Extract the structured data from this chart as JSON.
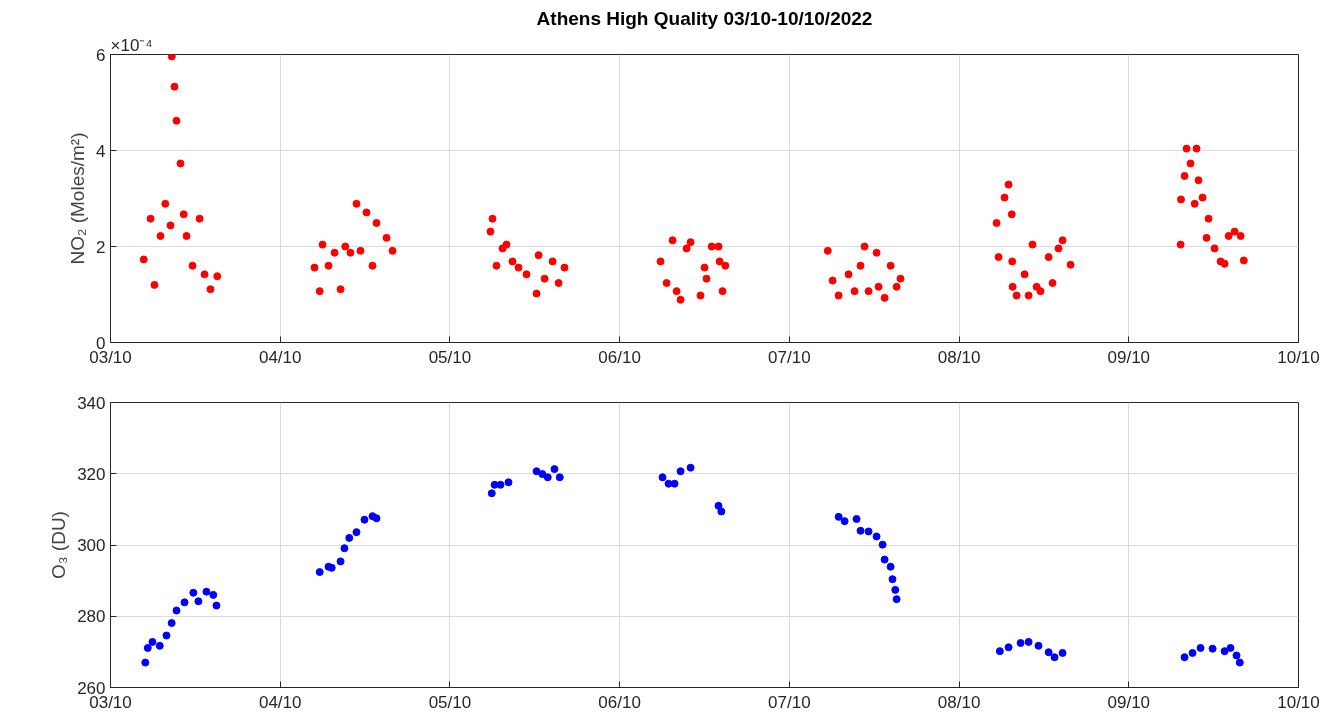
{
  "chart_data": [
    {
      "type": "scatter",
      "title": "Athens High Quality 03/10-10/10/2022",
      "ylabel": "NO₂ (Moles/m²)",
      "annotations": [
        "×10⁻⁴"
      ],
      "xlim": [
        "2022-10-03",
        "2022-10-10"
      ],
      "xticks": [
        {
          "value": "2022-10-03",
          "label": "03/10"
        },
        {
          "value": "2022-10-04",
          "label": "04/10"
        },
        {
          "value": "2022-10-05",
          "label": "05/10"
        },
        {
          "value": "2022-10-06",
          "label": "06/10"
        },
        {
          "value": "2022-10-07",
          "label": "07/10"
        },
        {
          "value": "2022-10-08",
          "label": "08/10"
        },
        {
          "value": "2022-10-09",
          "label": "09/10"
        },
        {
          "value": "2022-10-10",
          "label": "10/10"
        }
      ],
      "ylim": [
        0,
        6
      ],
      "yticks": [
        0,
        2,
        4,
        6
      ],
      "grid": true,
      "marker": "circle",
      "series": [
        {
          "color": "#ff0000",
          "x": [
            "2022-10-03T04:42",
            "2022-10-03T05:40",
            "2022-10-03T06:13",
            "2022-10-03T07:04",
            "2022-10-03T07:45",
            "2022-10-03T08:29",
            "2022-10-03T08:40",
            "2022-10-03T09:03",
            "2022-10-03T09:20",
            "2022-10-03T09:54",
            "2022-10-03T10:21",
            "2022-10-03T10:45",
            "2022-10-03T11:36",
            "2022-10-03T12:36",
            "2022-10-03T13:18",
            "2022-10-03T14:08",
            "2022-10-03T15:06",
            "2022-10-04T04:51",
            "2022-10-04T05:35",
            "2022-10-04T05:59",
            "2022-10-04T06:50",
            "2022-10-04T07:41",
            "2022-10-04T08:32",
            "2022-10-04T09:12",
            "2022-10-04T09:56",
            "2022-10-04T10:47",
            "2022-10-04T11:21",
            "2022-10-04T12:12",
            "2022-10-04T13:03",
            "2022-10-04T13:37",
            "2022-10-04T15:02",
            "2022-10-04T15:53",
            "2022-10-05T05:44",
            "2022-10-05T06:01",
            "2022-10-05T06:35",
            "2022-10-05T07:26",
            "2022-10-05T08:00",
            "2022-10-05T08:51",
            "2022-10-05T09:42",
            "2022-10-05T10:50",
            "2022-10-05T12:15",
            "2022-10-05T12:32",
            "2022-10-05T13:23",
            "2022-10-05T14:31",
            "2022-10-05T15:22",
            "2022-10-05T16:12",
            "2022-10-06T05:47",
            "2022-10-06T06:38",
            "2022-10-06T07:29",
            "2022-10-06T08:03",
            "2022-10-06T08:37",
            "2022-10-06T09:28",
            "2022-10-06T10:02",
            "2022-10-06T11:26",
            "2022-10-06T12:00",
            "2022-10-06T12:17",
            "2022-10-06T13:01",
            "2022-10-06T13:59",
            "2022-10-06T14:08",
            "2022-10-06T14:33",
            "2022-10-06T14:57",
            "2022-10-07T05:26",
            "2022-10-07T06:07",
            "2022-10-07T06:58",
            "2022-10-07T08:22",
            "2022-10-07T09:13",
            "2022-10-07T10:04",
            "2022-10-07T10:38",
            "2022-10-07T11:12",
            "2022-10-07T12:20",
            "2022-10-07T12:37",
            "2022-10-07T13:28",
            "2022-10-07T14:19",
            "2022-10-07T15:10",
            "2022-10-07T15:43",
            "2022-10-08T05:18",
            "2022-10-08T05:35",
            "2022-10-08T06:26",
            "2022-10-08T07:00",
            "2022-10-08T07:27",
            "2022-10-08T07:31",
            "2022-10-08T07:34",
            "2022-10-08T08:08",
            "2022-10-08T09:16",
            "2022-10-08T09:50",
            "2022-10-08T10:23",
            "2022-10-08T10:58",
            "2022-10-08T11:31",
            "2022-10-08T12:40",
            "2022-10-08T13:13",
            "2022-10-08T14:04",
            "2022-10-08T14:38",
            "2022-10-08T15:46",
            "2022-10-09T07:20",
            "2022-10-09T07:23",
            "2022-10-09T07:53",
            "2022-10-09T08:10",
            "2022-10-09T08:44",
            "2022-10-09T09:19",
            "2022-10-09T09:35",
            "2022-10-09T09:52",
            "2022-10-09T10:26",
            "2022-10-09T11:00",
            "2022-10-09T11:17",
            "2022-10-09T12:08",
            "2022-10-09T12:59",
            "2022-10-09T13:33",
            "2022-10-09T14:07",
            "2022-10-09T14:58",
            "2022-10-09T15:49",
            "2022-10-09T16:16"
          ],
          "values": [
            1.73,
            2.58,
            1.2,
            2.22,
            2.89,
            2.44,
            5.96,
            5.33,
            4.62,
            3.73,
            2.67,
            2.22,
            1.6,
            2.58,
            1.42,
            1.11,
            1.38,
            1.56,
            1.07,
            2.04,
            1.6,
            1.87,
            1.11,
            2.0,
            1.87,
            2.89,
            1.91,
            2.71,
            1.6,
            2.49,
            2.18,
            1.91,
            2.31,
            2.58,
            1.6,
            1.96,
            2.04,
            1.69,
            1.56,
            1.42,
            1.02,
            1.82,
            1.33,
            1.69,
            1.24,
            1.56,
            1.69,
            1.24,
            2.13,
            1.07,
            0.89,
            1.96,
            2.09,
            0.98,
            1.56,
            1.33,
            2.0,
            2.0,
            1.69,
            1.07,
            1.6,
            1.91,
            1.29,
            0.98,
            1.42,
            1.07,
            1.6,
            2.0,
            1.07,
            1.87,
            1.16,
            0.93,
            1.6,
            1.16,
            1.33,
            2.49,
            1.78,
            3.02,
            3.29,
            2.67,
            1.69,
            1.16,
            0.98,
            1.42,
            0.98,
            2.04,
            1.16,
            1.07,
            1.78,
            1.24,
            1.96,
            2.13,
            1.62,
            2.04,
            2.98,
            3.47,
            4.04,
            3.73,
            2.89,
            4.04,
            3.38,
            3.02,
            2.18,
            2.58,
            1.96,
            1.69,
            1.64,
            2.22,
            2.31,
            2.22,
            1.71
          ]
        }
      ]
    },
    {
      "type": "scatter",
      "ylabel": "O₃ (DU)",
      "xlim": [
        "2022-10-03",
        "2022-10-10"
      ],
      "xticks": [
        {
          "value": "2022-10-03",
          "label": "03/10"
        },
        {
          "value": "2022-10-04",
          "label": "04/10"
        },
        {
          "value": "2022-10-05",
          "label": "05/10"
        },
        {
          "value": "2022-10-06",
          "label": "06/10"
        },
        {
          "value": "2022-10-07",
          "label": "07/10"
        },
        {
          "value": "2022-10-08",
          "label": "08/10"
        },
        {
          "value": "2022-10-09",
          "label": "09/10"
        },
        {
          "value": "2022-10-10",
          "label": "10/10"
        }
      ],
      "ylim": [
        260,
        340
      ],
      "yticks": [
        260,
        280,
        300,
        320,
        340
      ],
      "grid": true,
      "marker": "circle",
      "series": [
        {
          "color": "#0000ff",
          "x": [
            "2022-10-03T04:55",
            "2022-10-03T05:16",
            "2022-10-03T05:56",
            "2022-10-03T06:58",
            "2022-10-03T07:55",
            "2022-10-03T08:39",
            "2022-10-03T09:20",
            "2022-10-03T10:28",
            "2022-10-03T11:43",
            "2022-10-03T12:26",
            "2022-10-03T13:34",
            "2022-10-03T14:32",
            "2022-10-03T14:59",
            "2022-10-04T05:35",
            "2022-10-04T06:50",
            "2022-10-04T07:17",
            "2022-10-04T08:32",
            "2022-10-04T09:05",
            "2022-10-04T09:46",
            "2022-10-04T10:47",
            "2022-10-04T11:55",
            "2022-10-04T13:03",
            "2022-10-04T13:37",
            "2022-10-05T05:55",
            "2022-10-05T06:19",
            "2022-10-05T07:09",
            "2022-10-05T08:17",
            "2022-10-05T12:15",
            "2022-10-05T13:05",
            "2022-10-05T13:50",
            "2022-10-05T14:47",
            "2022-10-05T15:32",
            "2022-10-06T06:04",
            "2022-10-06T06:55",
            "2022-10-06T07:46",
            "2022-10-06T08:37",
            "2022-10-06T10:02",
            "2022-10-06T13:59",
            "2022-10-06T14:23",
            "2022-10-07T06:58",
            "2022-10-07T07:49",
            "2022-10-07T09:30",
            "2022-10-07T10:04",
            "2022-10-07T11:12",
            "2022-10-07T12:20",
            "2022-10-07T13:11",
            "2022-10-07T13:28",
            "2022-10-07T14:19",
            "2022-10-07T14:35",
            "2022-10-07T14:59",
            "2022-10-07T15:10",
            "2022-10-08T05:46",
            "2022-10-08T07:00",
            "2022-10-08T08:42",
            "2022-10-08T09:50",
            "2022-10-08T11:14",
            "2022-10-08T12:40",
            "2022-10-08T13:30",
            "2022-10-08T14:38",
            "2022-10-09T07:53",
            "2022-10-09T09:01",
            "2022-10-09T10:09",
            "2022-10-09T11:51",
            "2022-10-09T13:33",
            "2022-10-09T14:23",
            "2022-10-09T15:14",
            "2022-10-09T15:42"
          ],
          "values": [
            267.0,
            271.1,
            272.8,
            271.7,
            274.6,
            278.1,
            281.6,
            283.9,
            286.6,
            284.2,
            286.9,
            286.0,
            283.0,
            292.4,
            293.9,
            293.6,
            295.4,
            299.1,
            302.0,
            303.6,
            307.1,
            308.1,
            307.5,
            314.5,
            316.9,
            316.9,
            317.6,
            320.7,
            319.9,
            319.0,
            321.3,
            319.0,
            319.0,
            317.2,
            317.2,
            320.7,
            321.7,
            311.0,
            309.4,
            307.9,
            306.7,
            307.3,
            304.0,
            303.8,
            302.4,
            300.1,
            295.9,
            293.9,
            290.4,
            287.4,
            284.8,
            270.2,
            271.3,
            272.5,
            272.8,
            271.7,
            269.9,
            268.5,
            269.7,
            268.5,
            269.7,
            271.1,
            270.9,
            270.2,
            271.1,
            269.0,
            267.0
          ]
        }
      ]
    }
  ]
}
